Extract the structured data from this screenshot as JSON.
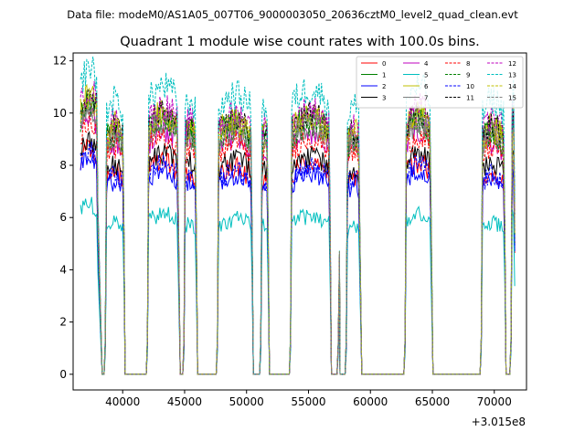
{
  "suptitle": "Data file: modeM0/AS1A05_007T06_9000003050_20636cztM0_level2_quad_clean.evt",
  "chart_data": {
    "type": "line",
    "title": "Quadrant 1 module wise count rates with 100.0s bins.",
    "xlabel": "",
    "ylabel": "",
    "x_offset_label": "+3.015e8",
    "xlim": [
      36000,
      72600
    ],
    "ylim": [
      -0.6,
      12.3
    ],
    "x_ticks": [
      40000,
      45000,
      50000,
      55000,
      60000,
      65000,
      70000
    ],
    "x_tick_labels": [
      "40000",
      "45000",
      "50000",
      "55000",
      "60000",
      "65000",
      "70000"
    ],
    "y_ticks": [
      0,
      2,
      4,
      6,
      8,
      10,
      12
    ],
    "y_tick_labels": [
      "0",
      "2",
      "4",
      "6",
      "8",
      "10",
      "12"
    ],
    "grid": false,
    "legend_position": "top-right",
    "bin_seconds": 100,
    "segments": [
      {
        "on": [
          36600,
          38050
        ],
        "off": [
          38350,
          38500
        ]
      },
      {
        "on": [
          38600,
          40150
        ],
        "off": [
          40200,
          41900
        ]
      },
      {
        "on": [
          42000,
          44550
        ],
        "off": [
          44650,
          44850
        ]
      },
      {
        "on": [
          44950,
          45950
        ],
        "off": [
          46050,
          47550
        ]
      },
      {
        "on": [
          47650,
          50500
        ],
        "off": [
          50550,
          51050
        ]
      },
      {
        "on": [
          51150,
          51750
        ],
        "off": [
          51850,
          53450
        ]
      },
      {
        "on": [
          53550,
          56750
        ],
        "off": [
          56850,
          57300
        ]
      },
      {
        "on": [
          57400,
          57500
        ],
        "off": [
          57550,
          57950
        ]
      },
      {
        "on": [
          58050,
          59200
        ],
        "off": [
          59300,
          62700
        ]
      },
      {
        "on": [
          62800,
          64950
        ],
        "off": [
          65050,
          68850
        ]
      },
      {
        "on": [
          68950,
          70850
        ],
        "off": [
          70950,
          71250
        ]
      },
      {
        "on": [
          71350,
          71700
        ],
        "off": []
      }
    ],
    "series": [
      {
        "name": "0",
        "color": "#ff0000",
        "dash": "solid",
        "mean_rate": 7.3
      },
      {
        "name": "1",
        "color": "#008000",
        "dash": "solid",
        "mean_rate": 8.9
      },
      {
        "name": "2",
        "color": "#0000ff",
        "dash": "solid",
        "mean_rate": 7.0
      },
      {
        "name": "3",
        "color": "#000000",
        "dash": "solid",
        "mean_rate": 7.6
      },
      {
        "name": "4",
        "color": "#bf00bf",
        "dash": "solid",
        "mean_rate": 8.4
      },
      {
        "name": "5",
        "color": "#00bfbf",
        "dash": "solid",
        "mean_rate": 5.5
      },
      {
        "name": "6",
        "color": "#bfbf00",
        "dash": "solid",
        "mean_rate": 9.0
      },
      {
        "name": "7",
        "color": "#808080",
        "dash": "solid",
        "mean_rate": 8.6
      },
      {
        "name": "8",
        "color": "#ff0000",
        "dash": "dashed",
        "mean_rate": 8.2
      },
      {
        "name": "9",
        "color": "#008000",
        "dash": "dashed",
        "mean_rate": 8.7
      },
      {
        "name": "10",
        "color": "#0000ff",
        "dash": "dashed",
        "mean_rate": 7.2
      },
      {
        "name": "11",
        "color": "#000000",
        "dash": "dashed",
        "mean_rate": 9.0
      },
      {
        "name": "12",
        "color": "#bf00bf",
        "dash": "dashed",
        "mean_rate": 9.2
      },
      {
        "name": "13",
        "color": "#00bfbf",
        "dash": "dashed",
        "mean_rate": 9.9
      },
      {
        "name": "14",
        "color": "#bfbf00",
        "dash": "dashed",
        "mean_rate": 8.8
      },
      {
        "name": "15",
        "color": "#808080",
        "dash": "dashed",
        "mean_rate": 8.7
      }
    ]
  }
}
